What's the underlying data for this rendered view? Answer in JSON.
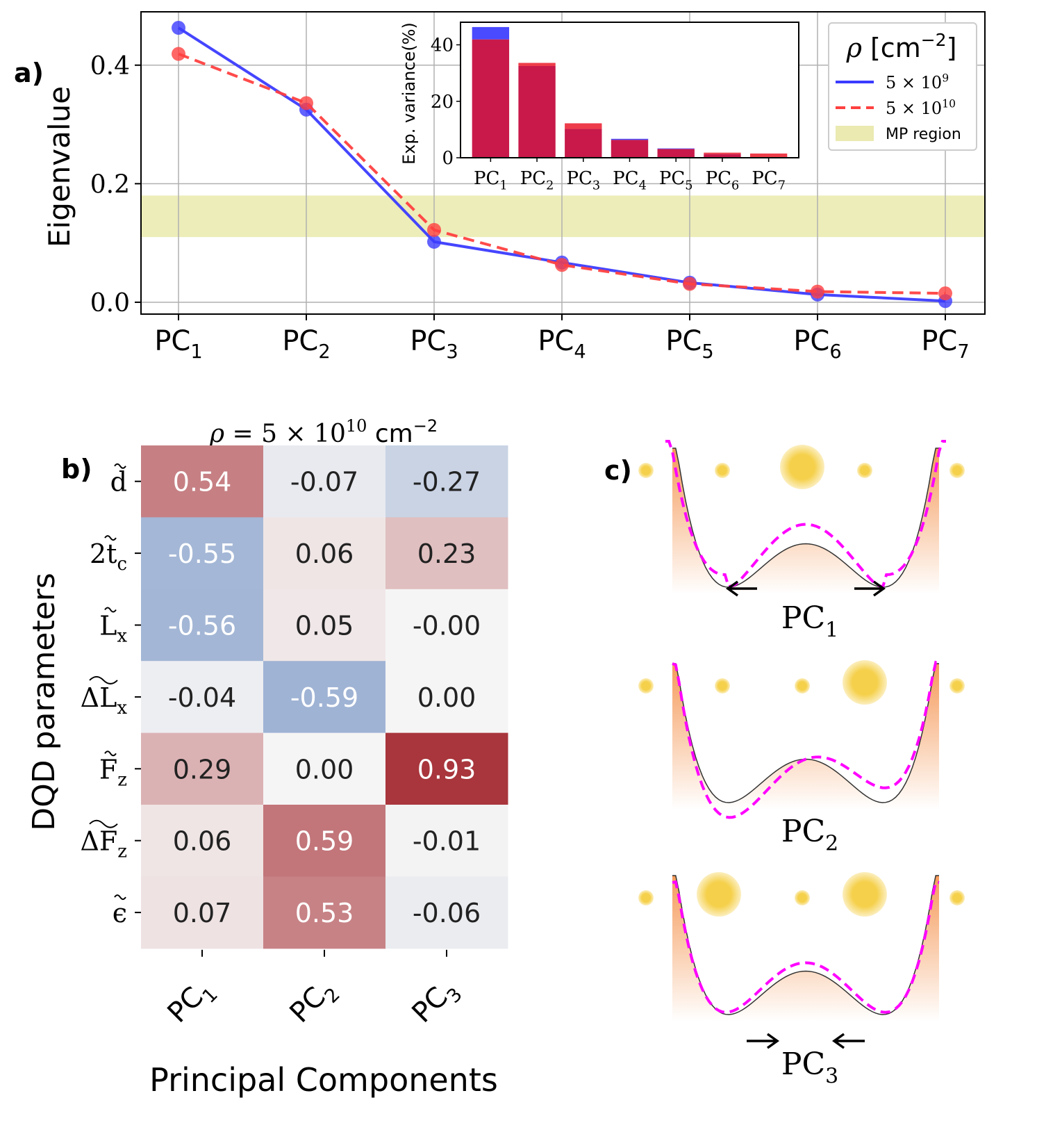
{
  "panel_labels": {
    "a": "a)",
    "b": "b)",
    "c": "c)"
  },
  "chart_data": [
    {
      "id": "eigenvalue-line-chart",
      "type": "line",
      "ylabel": "Eigenvalue",
      "categories": [
        "PC",
        "PC",
        "PC",
        "PC",
        "PC",
        "PC",
        "PC"
      ],
      "category_subscripts": [
        "1",
        "2",
        "3",
        "4",
        "5",
        "6",
        "7"
      ],
      "ylim": [
        -0.02,
        0.49
      ],
      "yticks": [
        0.0,
        0.2,
        0.4
      ],
      "ytick_labels": [
        "0.0",
        "0.2",
        "0.4"
      ],
      "grid": true,
      "series": [
        {
          "name": "5 × 10",
          "exponent": "9",
          "color": "#3b3bff",
          "style": "solid",
          "values": [
            0.463,
            0.325,
            0.102,
            0.067,
            0.033,
            0.013,
            0.002
          ]
        },
        {
          "name": "5 × 10",
          "exponent": "10",
          "color": "#ff4040",
          "style": "dashed",
          "values": [
            0.419,
            0.336,
            0.122,
            0.063,
            0.031,
            0.018,
            0.015
          ]
        }
      ],
      "shaded_band": {
        "label": "MP region",
        "y0": 0.11,
        "y1": 0.18,
        "color": "#e8e8a8"
      },
      "legend": {
        "title": "ρ [cm",
        "title_exp": "−2",
        "title_close": "]",
        "placement": "top-right"
      }
    },
    {
      "id": "explained-variance-inset",
      "type": "bar",
      "ylabel": "Exp. variance(%)",
      "categories": [
        "PC",
        "PC",
        "PC",
        "PC",
        "PC",
        "PC",
        "PC"
      ],
      "category_subscripts": [
        "1",
        "2",
        "3",
        "4",
        "5",
        "6",
        "7"
      ],
      "ylim": [
        0,
        48
      ],
      "yticks": [
        0,
        20,
        40
      ],
      "ytick_labels": [
        "0",
        "20",
        "40"
      ],
      "series": [
        {
          "name": "5 × 10^9",
          "color": "#4a4aff",
          "values": [
            46.3,
            32.5,
            10.2,
            6.7,
            3.3,
            1.3,
            0.2
          ]
        },
        {
          "name": "5 × 10^10",
          "color": "#ee3c4a",
          "values": [
            41.9,
            33.6,
            12.2,
            6.3,
            3.1,
            1.8,
            1.5
          ]
        }
      ],
      "overlap_color": "#c8194a",
      "placement": "inset top-center"
    },
    {
      "id": "loadings-heatmap",
      "type": "heatmap",
      "title": "ρ = 5 × 10",
      "title_exp": "10",
      "title_unit": "cm",
      "title_unit_exp": "−2",
      "xlabel": "Principal Components",
      "ylabel": "DQD parameters",
      "columns": [
        "PC",
        "PC",
        "PC"
      ],
      "column_subscripts": [
        "1",
        "2",
        "3"
      ],
      "rows": [
        {
          "base": "d",
          "mark": "~",
          "sub": ""
        },
        {
          "base": "2t",
          "mark": "~",
          "sub": "c"
        },
        {
          "base": "L",
          "mark": "~",
          "sub": "x"
        },
        {
          "base": "ΔL",
          "mark": "wide",
          "sub": "x"
        },
        {
          "base": "F",
          "mark": "~",
          "sub": "z"
        },
        {
          "base": "ΔF",
          "mark": "wide",
          "sub": "z"
        },
        {
          "base": "ϵ",
          "mark": "~",
          "sub": ""
        }
      ],
      "values": [
        [
          0.54,
          -0.07,
          -0.27
        ],
        [
          -0.55,
          0.06,
          0.23
        ],
        [
          -0.56,
          0.05,
          -0.0
        ],
        [
          -0.04,
          -0.59,
          0.0
        ],
        [
          0.29,
          0.0,
          0.93
        ],
        [
          0.06,
          0.59,
          -0.01
        ],
        [
          0.07,
          0.53,
          -0.06
        ]
      ],
      "labels": [
        [
          "0.54",
          "-0.07",
          "-0.27"
        ],
        [
          "-0.55",
          "0.06",
          "0.23"
        ],
        [
          "-0.56",
          "0.05",
          "-0.00"
        ],
        [
          "-0.04",
          "-0.59",
          "0.00"
        ],
        [
          "0.29",
          "0.00",
          "0.93"
        ],
        [
          "0.06",
          "0.59",
          "-0.01"
        ],
        [
          "0.07",
          "0.53",
          "-0.06"
        ]
      ],
      "colormap": "diverging blue-white-red",
      "vrange": [
        -1,
        1
      ]
    }
  ],
  "schematics": [
    {
      "label": "PC",
      "sub": "1",
      "arrows": "outward",
      "dot_sizes": [
        1,
        1,
        3,
        1,
        1
      ]
    },
    {
      "label": "PC",
      "sub": "2",
      "arrows": "none",
      "dot_sizes": [
        1,
        1,
        1,
        3,
        1
      ]
    },
    {
      "label": "PC",
      "sub": "3",
      "arrows": "inward",
      "dot_sizes": [
        1,
        3,
        1,
        3,
        1
      ]
    }
  ],
  "colors": {
    "axis": "#000000",
    "grid": "#b0b0b0",
    "dots": "#f5d04a",
    "potential_fill": "#f59a5a",
    "dashed_potential": "#ff00ff"
  }
}
